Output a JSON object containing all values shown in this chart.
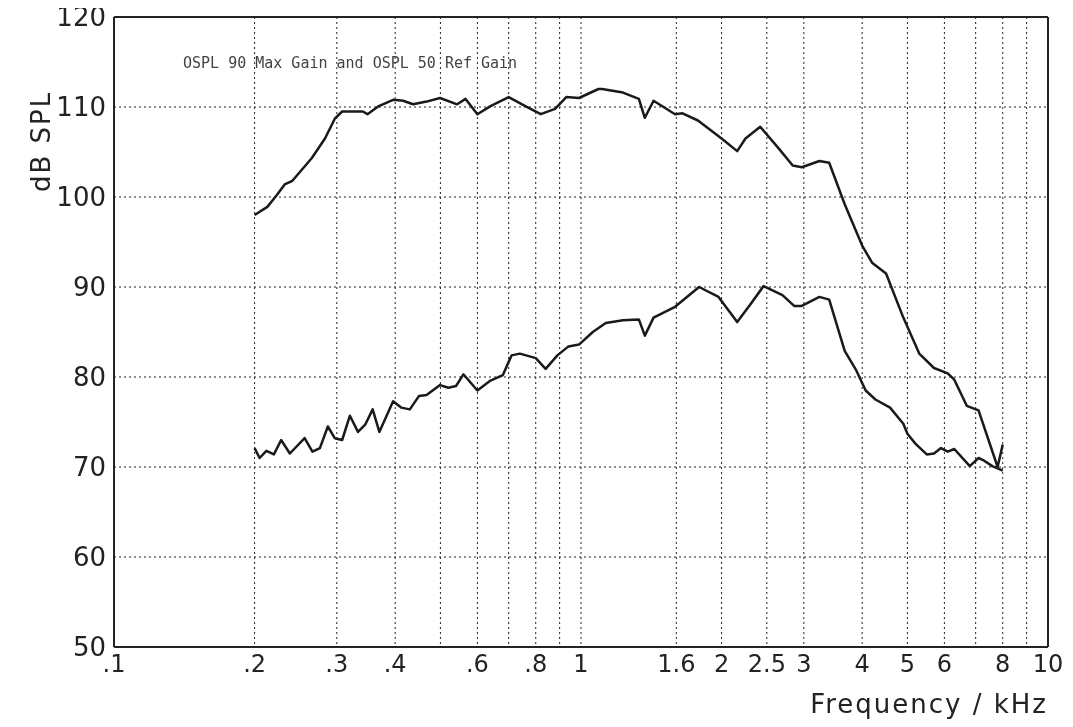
{
  "chart_data": {
    "type": "line",
    "title": "OSPL 90 Max Gain and OSPL 50 Ref Gain",
    "xlabel": "Frequency / kHz",
    "ylabel": "dB SPL",
    "log": "x",
    "grid": true,
    "line_style": "solid",
    "xlim": [
      0.1,
      10
    ],
    "ylim": [
      50,
      120
    ],
    "xticks": [
      {
        "value": 0.1,
        "label": ".1"
      },
      {
        "value": 0.2,
        "label": ".2"
      },
      {
        "value": 0.3,
        "label": ".3"
      },
      {
        "value": 0.4,
        "label": ".4"
      },
      {
        "value": 0.5,
        "label": null
      },
      {
        "value": 0.6,
        "label": ".6"
      },
      {
        "value": 0.7,
        "label": null
      },
      {
        "value": 0.8,
        "label": ".8"
      },
      {
        "value": 0.9,
        "label": null
      },
      1,
      1.6,
      2,
      2.5,
      3,
      4,
      5,
      6,
      {
        "value": 7,
        "label": null
      },
      8,
      {
        "value": 9,
        "label": null
      },
      10
    ],
    "yticks": [
      50,
      60,
      70,
      80,
      90,
      100,
      110,
      120
    ],
    "series": [
      {
        "color": "#1a1a1a",
        "x": [
          0.2,
          0.213,
          0.223,
          0.232,
          0.241,
          0.265,
          0.283,
          0.297,
          0.308,
          0.341,
          0.349,
          0.369,
          0.396,
          0.416,
          0.437,
          0.467,
          0.499,
          0.543,
          0.566,
          0.6,
          0.64,
          0.7,
          0.76,
          0.82,
          0.88,
          0.93,
          0.99,
          1.09,
          1.11,
          1.23,
          1.33,
          1.37,
          1.43,
          1.59,
          1.65,
          1.78,
          2.0,
          2.16,
          2.25,
          2.42,
          2.65,
          2.84,
          2.97,
          3.24,
          3.4,
          3.67,
          4.0,
          4.2,
          4.5,
          4.9,
          5.3,
          5.7,
          6.1,
          6.3,
          6.7,
          7.1,
          7.8,
          8.0
        ],
        "values": [
          98.0,
          98.9,
          100.2,
          101.4,
          101.8,
          104.3,
          106.5,
          108.7,
          109.5,
          109.5,
          109.2,
          110.1,
          110.8,
          110.7,
          110.3,
          110.6,
          111.0,
          110.3,
          110.9,
          109.2,
          110.1,
          111.1,
          110.1,
          109.2,
          109.8,
          111.1,
          111.0,
          112.0,
          112.0,
          111.6,
          110.9,
          108.8,
          110.7,
          109.2,
          109.3,
          108.5,
          106.5,
          105.1,
          106.5,
          107.8,
          105.4,
          103.5,
          103.3,
          104.0,
          103.8,
          99.2,
          94.6,
          92.7,
          91.5,
          86.6,
          82.6,
          81.0,
          80.4,
          79.7,
          76.8,
          76.3,
          70.0,
          72.5
        ]
      },
      {
        "color": "#1a1a1a",
        "x": [
          0.2,
          0.205,
          0.212,
          0.22,
          0.228,
          0.238,
          0.256,
          0.266,
          0.276,
          0.287,
          0.297,
          0.308,
          0.32,
          0.333,
          0.345,
          0.358,
          0.37,
          0.396,
          0.412,
          0.43,
          0.45,
          0.467,
          0.499,
          0.52,
          0.54,
          0.56,
          0.6,
          0.64,
          0.68,
          0.71,
          0.74,
          0.8,
          0.84,
          0.89,
          0.94,
          0.99,
          1.06,
          1.13,
          1.23,
          1.33,
          1.37,
          1.43,
          1.59,
          1.79,
          1.97,
          2.16,
          2.3,
          2.46,
          2.7,
          2.86,
          2.97,
          3.24,
          3.4,
          3.67,
          3.88,
          4.07,
          4.27,
          4.59,
          4.9,
          5.0,
          5.2,
          5.5,
          5.7,
          5.9,
          6.1,
          6.3,
          6.8,
          7.1,
          7.3,
          7.6,
          8.0
        ],
        "values": [
          72.1,
          71.0,
          71.8,
          71.4,
          73.0,
          71.5,
          73.2,
          71.7,
          72.1,
          74.5,
          73.2,
          73.0,
          75.7,
          73.9,
          74.7,
          76.4,
          73.9,
          77.3,
          76.6,
          76.4,
          77.9,
          78.0,
          79.1,
          78.8,
          79.0,
          80.3,
          78.5,
          79.6,
          80.2,
          82.4,
          82.6,
          82.1,
          80.9,
          82.4,
          83.4,
          83.6,
          85.0,
          86.0,
          86.3,
          86.4,
          84.6,
          86.6,
          87.8,
          90.0,
          88.9,
          86.1,
          88.0,
          90.1,
          89.1,
          87.9,
          87.9,
          88.9,
          88.6,
          82.9,
          80.8,
          78.5,
          77.5,
          76.6,
          74.8,
          73.7,
          72.6,
          71.4,
          71.5,
          72.1,
          71.7,
          72.0,
          70.1,
          71.0,
          70.7,
          70.1,
          69.6
        ]
      }
    ]
  }
}
